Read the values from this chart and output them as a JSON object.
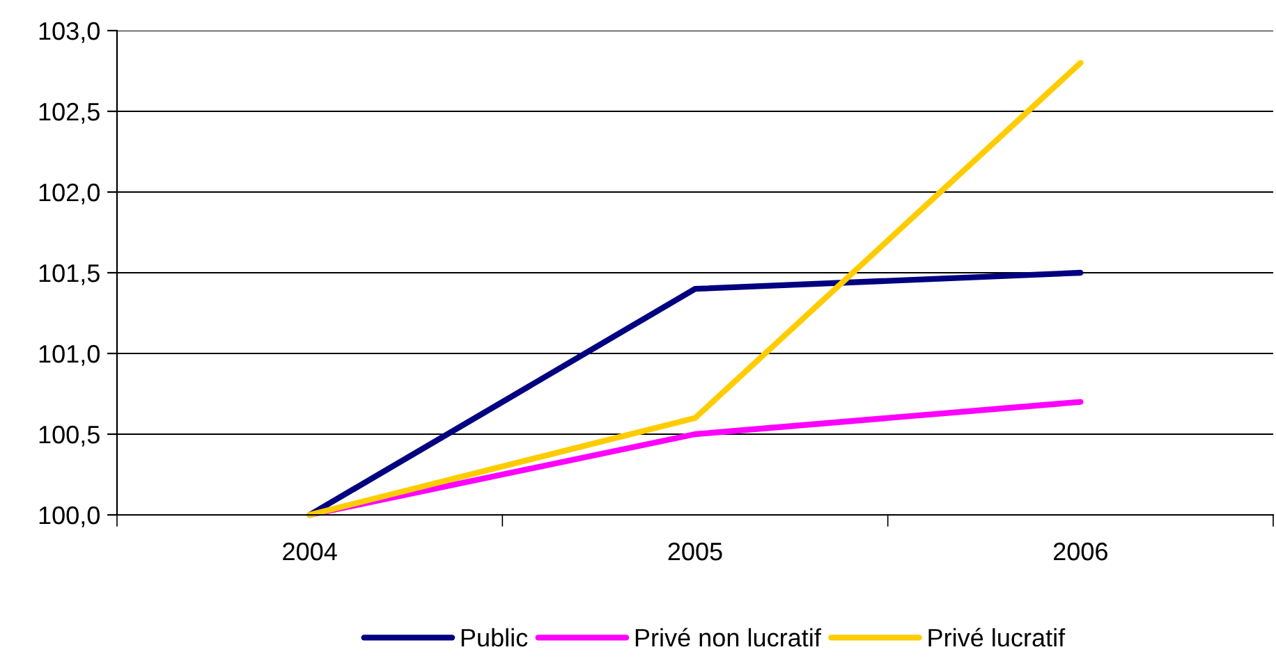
{
  "chart_data": {
    "type": "line",
    "categories": [
      "2004",
      "2005",
      "2006"
    ],
    "series": [
      {
        "name": "Public",
        "color": "#000080",
        "values": [
          100.0,
          101.4,
          101.5
        ]
      },
      {
        "name": "Privé non lucratif",
        "color": "#ff00ff",
        "values": [
          100.0,
          100.5,
          100.7
        ]
      },
      {
        "name": "Privé lucratif",
        "color": "#ffcc00",
        "values": [
          100.0,
          100.6,
          102.8
        ]
      }
    ],
    "ylim": [
      100.0,
      103.0
    ],
    "yticks": [
      {
        "value": 100.0,
        "label": "100,0"
      },
      {
        "value": 100.5,
        "label": "100,5"
      },
      {
        "value": 101.0,
        "label": "101,0"
      },
      {
        "value": 101.5,
        "label": "101,5"
      },
      {
        "value": 102.0,
        "label": "102,0"
      },
      {
        "value": 102.5,
        "label": "102,5"
      },
      {
        "value": 103.0,
        "label": "103,0"
      }
    ],
    "grid": "y",
    "legend": "bottom",
    "marker": "none",
    "line_style": "solid"
  }
}
